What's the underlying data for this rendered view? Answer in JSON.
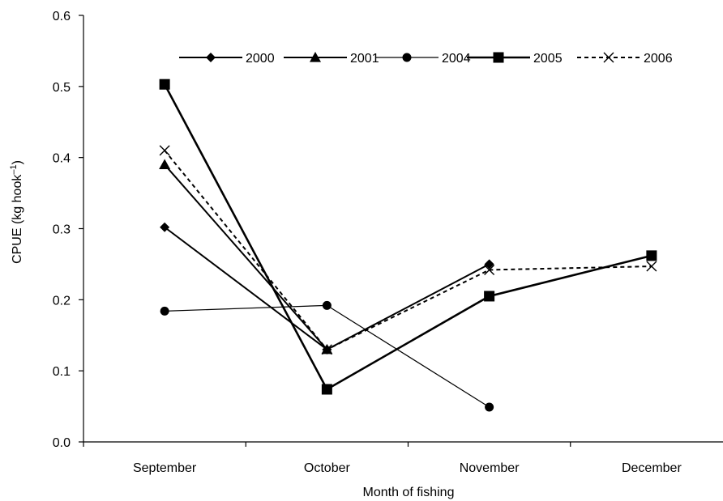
{
  "chart_data": {
    "type": "line",
    "xlabel": "Month of fishing",
    "ylabel": "CPUE (kg hook",
    "ylabel_sup": "–1",
    "ylabel_close": ")",
    "categories": [
      "September",
      "October",
      "November",
      "December"
    ],
    "ylim": [
      0,
      0.6
    ],
    "yticks": [
      "0.0",
      "0.1",
      "0.2",
      "0.3",
      "0.4",
      "0.5",
      "0.6"
    ],
    "ytick_values": [
      0,
      0.1,
      0.2,
      0.3,
      0.4,
      0.5,
      0.6
    ],
    "grid": false,
    "legend_position": "top",
    "series": [
      {
        "name": "2000",
        "values": [
          0.302,
          0.13,
          0.25,
          null
        ],
        "marker": "diamond",
        "line": "solid",
        "width": "medium"
      },
      {
        "name": "2001",
        "values": [
          0.39,
          0.13,
          null,
          null
        ],
        "marker": "triangle",
        "line": "solid",
        "width": "medium"
      },
      {
        "name": "2004",
        "values": [
          0.184,
          0.192,
          0.049,
          null
        ],
        "marker": "circle",
        "line": "solid",
        "width": "thin"
      },
      {
        "name": "2005",
        "values": [
          0.503,
          0.074,
          0.205,
          0.262
        ],
        "marker": "square",
        "line": "solid",
        "width": "thick"
      },
      {
        "name": "2006",
        "values": [
          0.41,
          0.13,
          0.242,
          0.247
        ],
        "marker": "x",
        "line": "dashed",
        "width": "medium"
      }
    ]
  }
}
